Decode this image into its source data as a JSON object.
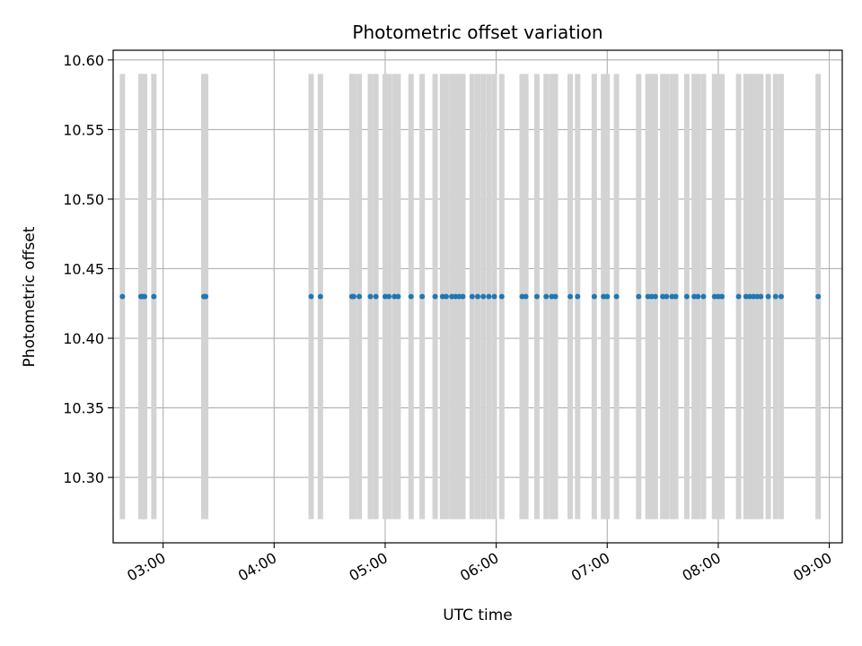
{
  "chart_data": {
    "type": "scatter",
    "title": "Photometric offset variation",
    "xlabel": "UTC time",
    "ylabel": "Photometric offset",
    "xlim": [
      "02:33",
      "09:07"
    ],
    "ylim": [
      10.253,
      10.607
    ],
    "x_ticks": [
      "03:00",
      "04:00",
      "05:00",
      "06:00",
      "07:00",
      "08:00",
      "09:00"
    ],
    "y_ticks": [
      10.3,
      10.35,
      10.4,
      10.45,
      10.5,
      10.55,
      10.6
    ],
    "y_tick_labels": [
      "10.30",
      "10.35",
      "10.40",
      "10.45",
      "10.50",
      "10.55",
      "10.60"
    ],
    "grid": true,
    "colors": {
      "points": "#1f77b4",
      "error_bars": "#d3d3d3",
      "grid": "#b0b0b0"
    },
    "errorbar_range": [
      10.27,
      10.59
    ],
    "series": [
      {
        "y_value": 10.43,
        "x": [
          "02:38",
          "02:48",
          "02:49",
          "02:50",
          "02:55",
          "03:22",
          "03:23",
          "04:20",
          "04:25",
          "04:42",
          "04:43",
          "04:46",
          "04:52",
          "04:55",
          "05:00",
          "05:02",
          "05:05",
          "05:07",
          "05:14",
          "05:20",
          "05:27",
          "05:31",
          "05:33",
          "05:36",
          "05:38",
          "05:40",
          "05:42",
          "05:47",
          "05:50",
          "05:53",
          "05:56",
          "05:59",
          "06:03",
          "06:14",
          "06:16",
          "06:22",
          "06:27",
          "06:30",
          "06:32",
          "06:40",
          "06:44",
          "06:53",
          "06:58",
          "07:00",
          "07:05",
          "07:17",
          "07:22",
          "07:24",
          "07:26",
          "07:30",
          "07:32",
          "07:35",
          "07:37",
          "07:43",
          "07:47",
          "07:49",
          "07:52",
          "07:58",
          "08:00",
          "08:02",
          "08:11",
          "08:15",
          "08:17",
          "08:19",
          "08:21",
          "08:23",
          "08:27",
          "08:31",
          "08:34",
          "08:54"
        ]
      }
    ]
  }
}
